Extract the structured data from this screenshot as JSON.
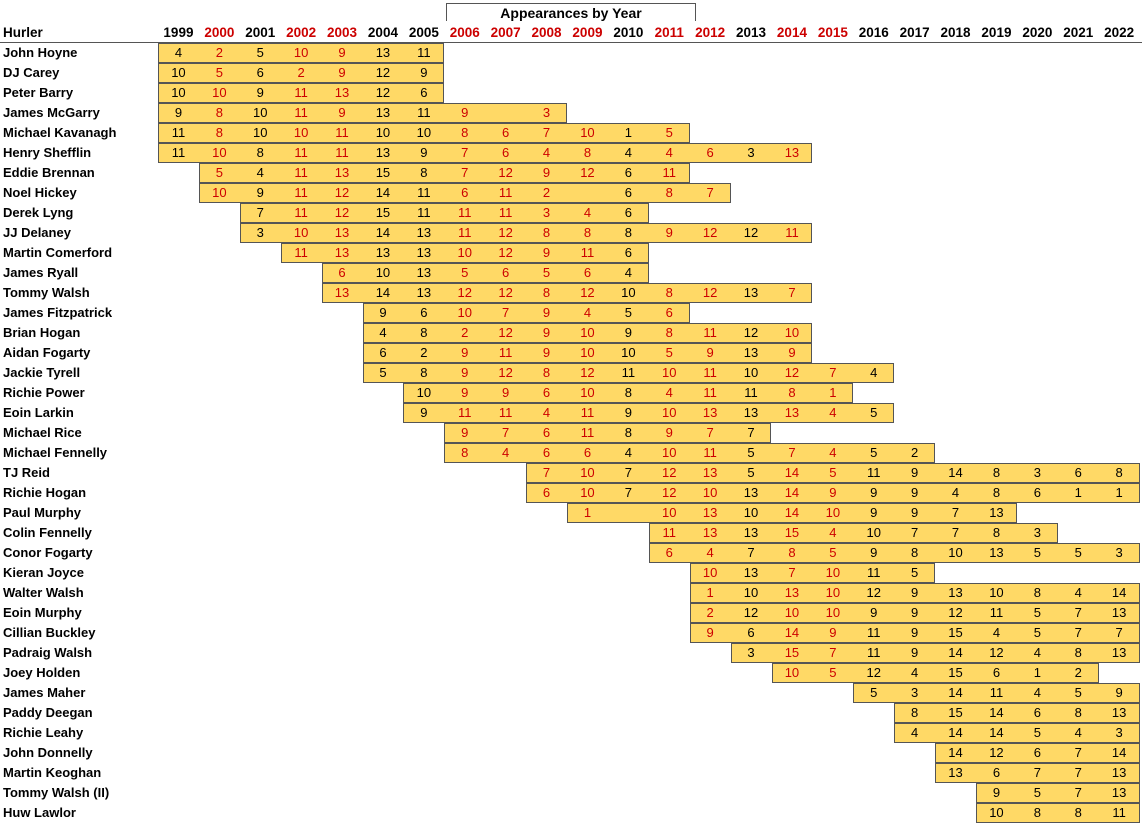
{
  "chart_data": {
    "type": "table",
    "title": "Appearances by Year",
    "row_header": "Hurler",
    "years": [
      "1999",
      "2000",
      "2001",
      "2002",
      "2003",
      "2004",
      "2005",
      "2006",
      "2007",
      "2008",
      "2009",
      "2010",
      "2011",
      "2012",
      "2013",
      "2014",
      "2015",
      "2016",
      "2017",
      "2018",
      "2019",
      "2020",
      "2021",
      "2022"
    ],
    "red_years": [
      "2000",
      "2002",
      "2003",
      "2006",
      "2007",
      "2008",
      "2009",
      "2011",
      "2012",
      "2014",
      "2015"
    ],
    "colors": {
      "band": "#ffd966",
      "red_text": "#cc0000",
      "text": "#000000",
      "border": "#555555"
    },
    "rows": [
      {
        "name": "John Hoyne",
        "start": "1999",
        "values": [
          4,
          2,
          5,
          10,
          9,
          13,
          11
        ]
      },
      {
        "name": "DJ Carey",
        "start": "1999",
        "values": [
          10,
          5,
          6,
          2,
          9,
          12,
          9
        ]
      },
      {
        "name": "Peter Barry",
        "start": "1999",
        "values": [
          10,
          10,
          9,
          11,
          13,
          12,
          6
        ]
      },
      {
        "name": "James McGarry",
        "start": "1999",
        "values": [
          9,
          8,
          10,
          11,
          9,
          13,
          11,
          9,
          null,
          3
        ]
      },
      {
        "name": "Michael Kavanagh",
        "start": "1999",
        "values": [
          11,
          8,
          10,
          10,
          11,
          10,
          10,
          8,
          6,
          7,
          10,
          1,
          5
        ]
      },
      {
        "name": "Henry Shefflin",
        "start": "1999",
        "values": [
          11,
          10,
          8,
          11,
          11,
          13,
          9,
          7,
          6,
          4,
          8,
          4,
          4,
          6,
          3,
          13
        ]
      },
      {
        "name": "Eddie Brennan",
        "start": "2000",
        "values": [
          5,
          4,
          11,
          13,
          15,
          8,
          7,
          12,
          9,
          12,
          6,
          11
        ]
      },
      {
        "name": "Noel Hickey",
        "start": "2000",
        "values": [
          10,
          9,
          11,
          12,
          14,
          11,
          6,
          11,
          2,
          null,
          6,
          8,
          7
        ]
      },
      {
        "name": "Derek Lyng",
        "start": "2001",
        "values": [
          7,
          11,
          12,
          15,
          11,
          11,
          11,
          3,
          4,
          6
        ]
      },
      {
        "name": "JJ Delaney",
        "start": "2001",
        "values": [
          3,
          10,
          13,
          14,
          13,
          11,
          12,
          8,
          8,
          8,
          9,
          12,
          12,
          11
        ]
      },
      {
        "name": "Martin Comerford",
        "start": "2002",
        "values": [
          11,
          13,
          13,
          13,
          10,
          12,
          9,
          11,
          6
        ]
      },
      {
        "name": "James Ryall",
        "start": "2003",
        "values": [
          6,
          10,
          13,
          5,
          6,
          5,
          6,
          4
        ]
      },
      {
        "name": "Tommy Walsh",
        "start": "2003",
        "values": [
          13,
          14,
          13,
          12,
          12,
          8,
          12,
          10,
          8,
          12,
          13,
          7
        ]
      },
      {
        "name": "James Fitzpatrick",
        "start": "2004",
        "values": [
          9,
          6,
          10,
          7,
          9,
          4,
          5,
          6
        ]
      },
      {
        "name": "Brian Hogan",
        "start": "2004",
        "values": [
          4,
          8,
          2,
          12,
          9,
          10,
          9,
          8,
          11,
          12,
          10
        ]
      },
      {
        "name": "Aidan Fogarty",
        "start": "2004",
        "values": [
          6,
          2,
          9,
          11,
          9,
          10,
          10,
          5,
          9,
          13,
          9
        ]
      },
      {
        "name": "Jackie Tyrell",
        "start": "2004",
        "values": [
          5,
          8,
          9,
          12,
          8,
          12,
          11,
          10,
          11,
          10,
          12,
          7,
          4
        ]
      },
      {
        "name": "Richie Power",
        "start": "2005",
        "values": [
          10,
          9,
          9,
          6,
          10,
          8,
          4,
          11,
          11,
          8,
          1
        ]
      },
      {
        "name": "Eoin Larkin",
        "start": "2005",
        "values": [
          9,
          11,
          11,
          4,
          11,
          9,
          10,
          13,
          13,
          13,
          4,
          5
        ]
      },
      {
        "name": "Michael Rice",
        "start": "2006",
        "values": [
          9,
          7,
          6,
          11,
          8,
          9,
          7,
          7
        ]
      },
      {
        "name": "Michael Fennelly",
        "start": "2006",
        "values": [
          8,
          4,
          6,
          6,
          4,
          10,
          11,
          5,
          7,
          4,
          5,
          2
        ]
      },
      {
        "name": "TJ Reid",
        "start": "2008",
        "values": [
          7,
          10,
          7,
          12,
          13,
          5,
          14,
          5,
          11,
          9,
          14,
          8,
          3,
          6,
          8
        ]
      },
      {
        "name": "Richie Hogan",
        "start": "2008",
        "values": [
          6,
          10,
          7,
          12,
          10,
          13,
          14,
          9,
          9,
          9,
          4,
          8,
          6,
          1,
          1
        ]
      },
      {
        "name": "Paul Murphy",
        "start": "2009",
        "values": [
          1,
          null,
          10,
          13,
          10,
          14,
          10,
          9,
          9,
          7,
          13
        ]
      },
      {
        "name": "Colin Fennelly",
        "start": "2011",
        "values": [
          11,
          13,
          13,
          15,
          4,
          10,
          7,
          7,
          8,
          3
        ]
      },
      {
        "name": "Conor Fogarty",
        "start": "2011",
        "values": [
          6,
          4,
          7,
          8,
          5,
          9,
          8,
          10,
          13,
          5,
          5,
          3
        ]
      },
      {
        "name": "Kieran Joyce",
        "start": "2012",
        "values": [
          10,
          13,
          7,
          10,
          11,
          5
        ]
      },
      {
        "name": "Walter Walsh",
        "start": "2012",
        "values": [
          1,
          10,
          13,
          10,
          12,
          9,
          13,
          10,
          8,
          4,
          14
        ]
      },
      {
        "name": "Eoin Murphy",
        "start": "2012",
        "values": [
          2,
          12,
          10,
          10,
          9,
          9,
          12,
          11,
          5,
          7,
          13
        ]
      },
      {
        "name": "Cillian Buckley",
        "start": "2012",
        "values": [
          9,
          6,
          14,
          9,
          11,
          9,
          15,
          4,
          5,
          7,
          7
        ]
      },
      {
        "name": "Padraig Walsh",
        "start": "2013",
        "values": [
          3,
          15,
          7,
          11,
          9,
          14,
          12,
          4,
          8,
          13
        ]
      },
      {
        "name": "Joey Holden",
        "start": "2014",
        "values": [
          10,
          5,
          12,
          4,
          15,
          6,
          1,
          2
        ]
      },
      {
        "name": "James Maher",
        "start": "2016",
        "values": [
          5,
          3,
          14,
          11,
          4,
          5,
          9
        ]
      },
      {
        "name": "Paddy Deegan",
        "start": "2017",
        "values": [
          8,
          15,
          14,
          6,
          8,
          13
        ]
      },
      {
        "name": "Richie Leahy",
        "start": "2017",
        "values": [
          4,
          14,
          14,
          5,
          4,
          3
        ]
      },
      {
        "name": "John Donnelly",
        "start": "2018",
        "values": [
          14,
          12,
          6,
          7,
          14
        ]
      },
      {
        "name": "Martin Keoghan",
        "start": "2018",
        "values": [
          13,
          6,
          7,
          7,
          13
        ]
      },
      {
        "name": "Tommy Walsh (II)",
        "start": "2019",
        "values": [
          9,
          5,
          7,
          13
        ]
      },
      {
        "name": "Huw Lawlor",
        "start": "2019",
        "values": [
          10,
          8,
          8,
          11
        ]
      }
    ]
  }
}
